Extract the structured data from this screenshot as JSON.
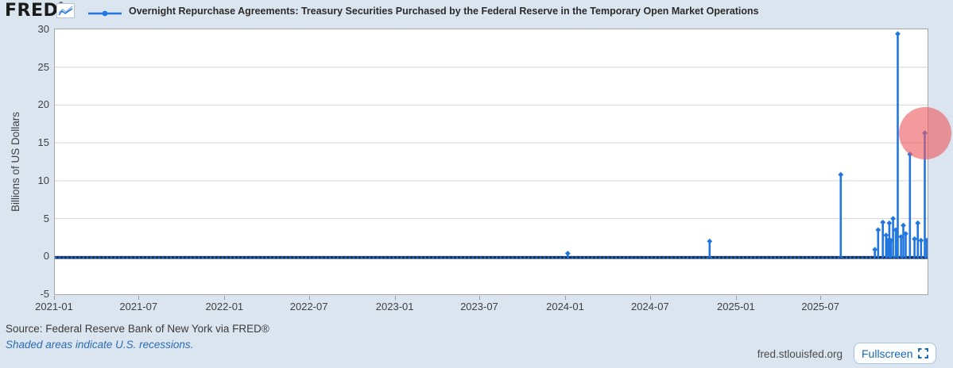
{
  "header": {
    "logo": "FRED",
    "logo_reg": "®",
    "legend_label": "Overnight Repurchase Agreements: Treasury Securities Purchased by the Federal Reserve in the Temporary Open Market Operations"
  },
  "footer": {
    "source": "Source: Federal Reserve Bank of New York via FRED®",
    "note": "Shaded areas indicate U.S. recessions.",
    "site": "fred.stlouisfed.org",
    "fullscreen_label": "Fullscreen"
  },
  "colors": {
    "page_bg": "#dbe5f0",
    "plot_bg": "#ffffff",
    "gridline": "#d6d6d6",
    "plot_border": "#a6a6a6",
    "series_blue": "#2176e0",
    "baseline_navy": "#0e2f5f",
    "highlight_red": "rgba(238,90,95,0.62)",
    "accent_blue": "#1769b8"
  },
  "chart_data": {
    "type": "line",
    "title": "Overnight Repurchase Agreements: Treasury Securities Purchased by the Federal Reserve in the Temporary Open Market Operations",
    "ylabel": "Billions of US Dollars",
    "ylim": [
      -5,
      30
    ],
    "yticks": [
      30,
      25,
      20,
      15,
      10,
      5,
      0,
      -5
    ],
    "xticks": [
      "2021-01",
      "2021-07",
      "2022-01",
      "2022-07",
      "2023-01",
      "2023-07",
      "2024-01",
      "2024-07",
      "2025-01",
      "2025-07"
    ],
    "x_start": "2021-01-01",
    "grid": "horizontal",
    "legend_position": "top",
    "baseline_value": -0.15,
    "points_note": "series is ~0 for the whole range except these estimated spikes (date, billions USD)",
    "points": [
      {
        "date": "2024-01-05",
        "value": 0.4
      },
      {
        "date": "2024-11-04",
        "value": 2.0
      },
      {
        "date": "2025-08-12",
        "value": 10.8
      },
      {
        "date": "2025-10-24",
        "value": 0.9
      },
      {
        "date": "2025-10-31",
        "value": 3.5
      },
      {
        "date": "2025-11-10",
        "value": 4.5
      },
      {
        "date": "2025-11-17",
        "value": 2.8
      },
      {
        "date": "2025-11-20",
        "value": 2.1
      },
      {
        "date": "2025-11-24",
        "value": 4.4
      },
      {
        "date": "2025-11-27",
        "value": 2.1
      },
      {
        "date": "2025-12-02",
        "value": 5.0
      },
      {
        "date": "2025-12-08",
        "value": 3.5
      },
      {
        "date": "2025-12-12",
        "value": 29.4
      },
      {
        "date": "2025-12-19",
        "value": 2.6
      },
      {
        "date": "2025-12-24",
        "value": 4.1
      },
      {
        "date": "2025-12-29",
        "value": 3.0
      },
      {
        "date": "2026-01-07",
        "value": 13.5
      },
      {
        "date": "2026-01-17",
        "value": 2.3
      },
      {
        "date": "2026-01-24",
        "value": 4.4
      },
      {
        "date": "2026-01-31",
        "value": 2.1
      },
      {
        "date": "2026-02-08",
        "value": 16.3
      },
      {
        "date": "2026-02-14",
        "value": 2.1
      }
    ],
    "highlight": {
      "date": "2026-02-08",
      "value": 16.3,
      "radius_px": 33
    }
  }
}
